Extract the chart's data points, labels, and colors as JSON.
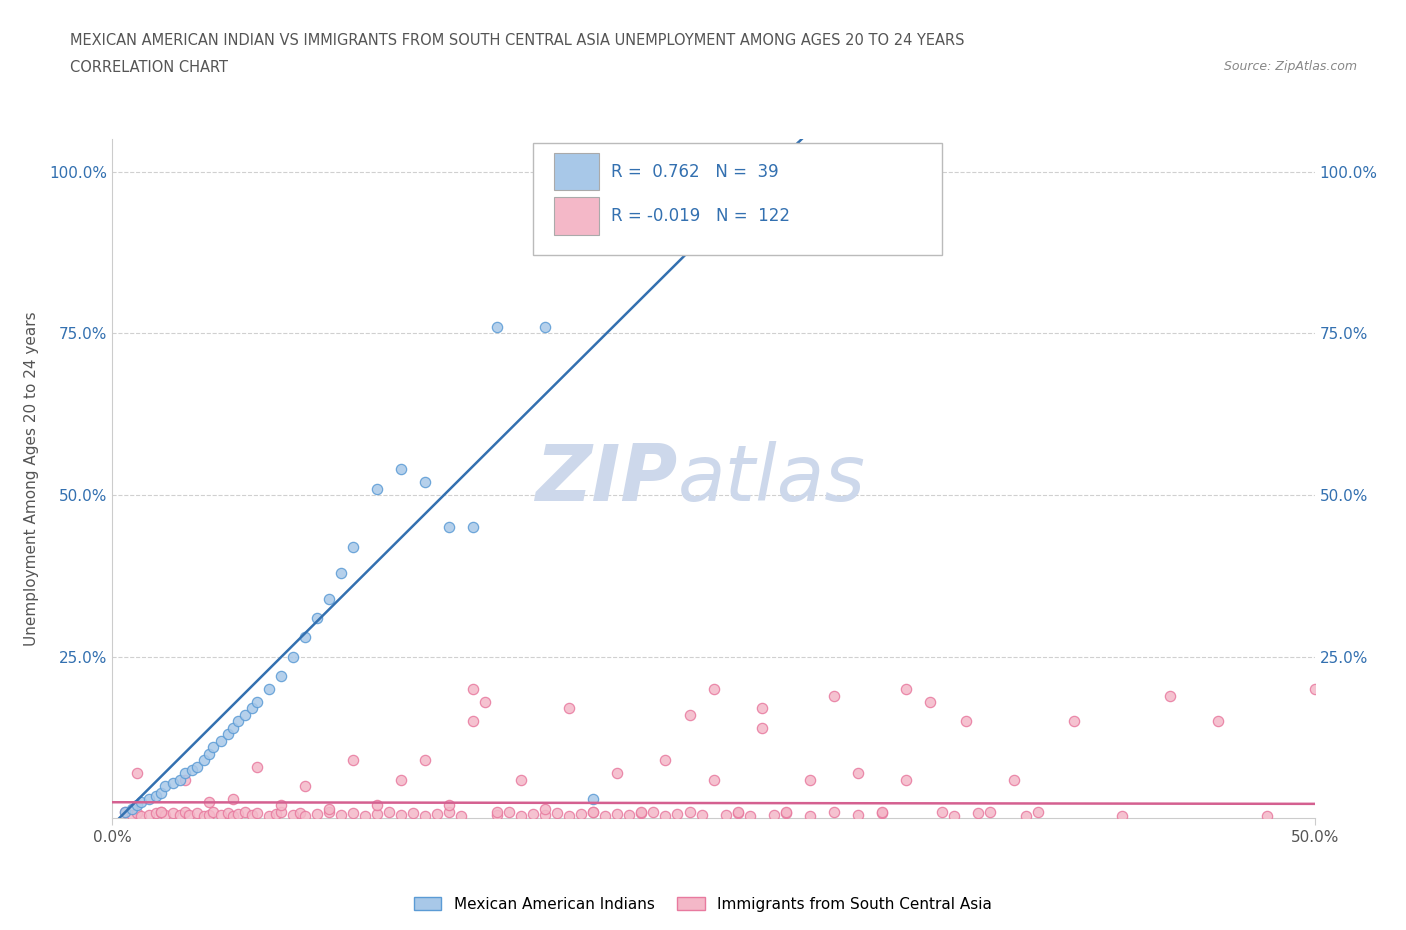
{
  "title_line1": "MEXICAN AMERICAN INDIAN VS IMMIGRANTS FROM SOUTH CENTRAL ASIA UNEMPLOYMENT AMONG AGES 20 TO 24 YEARS",
  "title_line2": "CORRELATION CHART",
  "source": "Source: ZipAtlas.com",
  "ylabel": "Unemployment Among Ages 20 to 24 years",
  "xlim": [
    0.0,
    0.5
  ],
  "ylim": [
    0.0,
    1.05
  ],
  "xtick_labels": [
    "0.0%",
    "50.0%"
  ],
  "xtick_vals": [
    0.0,
    0.5
  ],
  "ytick_vals": [
    0.0,
    0.25,
    0.5,
    0.75,
    1.0
  ],
  "ytick_labels_left": [
    "",
    "25.0%",
    "50.0%",
    "75.0%",
    "100.0%"
  ],
  "ytick_labels_right": [
    "",
    "25.0%",
    "50.0%",
    "75.0%",
    "100.0%"
  ],
  "blue_R": 0.762,
  "blue_N": 39,
  "pink_R": -0.019,
  "pink_N": 122,
  "blue_color": "#a8c8e8",
  "pink_color": "#f4b8c8",
  "blue_edge_color": "#5b9bd5",
  "pink_edge_color": "#e87a9f",
  "blue_line_color": "#3370b0",
  "pink_line_color": "#d46090",
  "watermark_zip": "ZIP",
  "watermark_atlas": "atlas",
  "legend_label_blue": "Mexican American Indians",
  "legend_label_pink": "Immigrants from South Central Asia",
  "blue_scatter_x": [
    0.005,
    0.008,
    0.01,
    0.012,
    0.015,
    0.018,
    0.02,
    0.022,
    0.025,
    0.028,
    0.03,
    0.033,
    0.035,
    0.038,
    0.04,
    0.042,
    0.045,
    0.048,
    0.05,
    0.052,
    0.055,
    0.058,
    0.06,
    0.065,
    0.07,
    0.075,
    0.08,
    0.085,
    0.09,
    0.095,
    0.1,
    0.11,
    0.12,
    0.13,
    0.14,
    0.15,
    0.16,
    0.18,
    0.2
  ],
  "blue_scatter_y": [
    0.01,
    0.015,
    0.02,
    0.025,
    0.03,
    0.035,
    0.04,
    0.05,
    0.055,
    0.06,
    0.07,
    0.075,
    0.08,
    0.09,
    0.1,
    0.11,
    0.12,
    0.13,
    0.14,
    0.15,
    0.16,
    0.17,
    0.18,
    0.2,
    0.22,
    0.25,
    0.28,
    0.31,
    0.34,
    0.38,
    0.42,
    0.51,
    0.54,
    0.52,
    0.45,
    0.45,
    0.76,
    0.76,
    0.03
  ],
  "pink_scatter_x": [
    0.005,
    0.008,
    0.01,
    0.012,
    0.015,
    0.018,
    0.02,
    0.022,
    0.025,
    0.028,
    0.03,
    0.032,
    0.035,
    0.038,
    0.04,
    0.042,
    0.045,
    0.048,
    0.05,
    0.052,
    0.055,
    0.058,
    0.06,
    0.065,
    0.068,
    0.07,
    0.075,
    0.078,
    0.08,
    0.085,
    0.09,
    0.095,
    0.1,
    0.105,
    0.11,
    0.115,
    0.12,
    0.125,
    0.13,
    0.135,
    0.14,
    0.145,
    0.15,
    0.155,
    0.16,
    0.165,
    0.17,
    0.175,
    0.18,
    0.185,
    0.19,
    0.195,
    0.2,
    0.205,
    0.21,
    0.215,
    0.22,
    0.225,
    0.23,
    0.235,
    0.24,
    0.245,
    0.25,
    0.255,
    0.26,
    0.265,
    0.27,
    0.275,
    0.28,
    0.29,
    0.3,
    0.31,
    0.32,
    0.33,
    0.34,
    0.35,
    0.36,
    0.38,
    0.4,
    0.42,
    0.44,
    0.46,
    0.48,
    0.5,
    0.01,
    0.02,
    0.03,
    0.04,
    0.05,
    0.06,
    0.07,
    0.08,
    0.09,
    0.1,
    0.11,
    0.12,
    0.13,
    0.14,
    0.15,
    0.16,
    0.17,
    0.18,
    0.19,
    0.2,
    0.21,
    0.22,
    0.23,
    0.24,
    0.25,
    0.26,
    0.27,
    0.28,
    0.29,
    0.3,
    0.31,
    0.32,
    0.33,
    0.345,
    0.355,
    0.365,
    0.375,
    0.385
  ],
  "pink_scatter_y": [
    0.01,
    0.005,
    0.008,
    0.003,
    0.005,
    0.008,
    0.01,
    0.005,
    0.008,
    0.006,
    0.01,
    0.005,
    0.008,
    0.004,
    0.006,
    0.01,
    0.005,
    0.008,
    0.004,
    0.007,
    0.01,
    0.005,
    0.008,
    0.004,
    0.007,
    0.01,
    0.005,
    0.008,
    0.004,
    0.007,
    0.01,
    0.005,
    0.008,
    0.004,
    0.007,
    0.01,
    0.005,
    0.008,
    0.004,
    0.007,
    0.01,
    0.004,
    0.15,
    0.18,
    0.006,
    0.01,
    0.004,
    0.007,
    0.005,
    0.008,
    0.004,
    0.007,
    0.01,
    0.004,
    0.007,
    0.005,
    0.008,
    0.01,
    0.004,
    0.007,
    0.16,
    0.005,
    0.2,
    0.005,
    0.008,
    0.004,
    0.14,
    0.005,
    0.008,
    0.004,
    0.19,
    0.005,
    0.008,
    0.2,
    0.18,
    0.004,
    0.008,
    0.004,
    0.15,
    0.004,
    0.19,
    0.15,
    0.004,
    0.2,
    0.07,
    0.01,
    0.06,
    0.025,
    0.03,
    0.08,
    0.02,
    0.05,
    0.015,
    0.09,
    0.02,
    0.06,
    0.09,
    0.02,
    0.2,
    0.01,
    0.06,
    0.015,
    0.17,
    0.01,
    0.07,
    0.01,
    0.09,
    0.01,
    0.06,
    0.01,
    0.17,
    0.01,
    0.06,
    0.01,
    0.07,
    0.01,
    0.06,
    0.01,
    0.15,
    0.01,
    0.06,
    0.01
  ],
  "background_color": "#ffffff",
  "grid_color": "#d0d0d0",
  "title_color": "#555555",
  "watermark_color": "#cdd8eb"
}
